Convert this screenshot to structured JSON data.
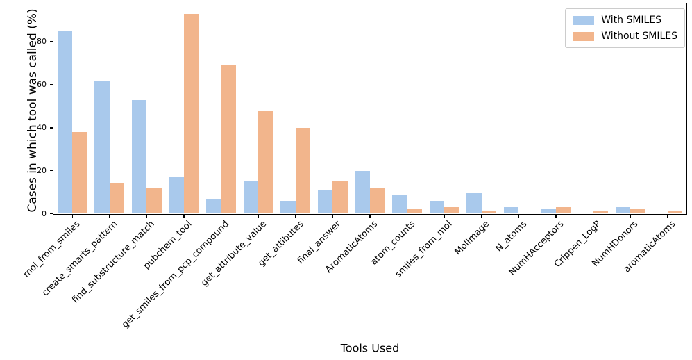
{
  "chart_data": {
    "type": "bar",
    "title": "",
    "xlabel": "Tools Used",
    "ylabel": "Cases in which tool was called (%)",
    "ylim": [
      0,
      97.65
    ],
    "yticks": [
      0,
      20,
      40,
      60,
      80
    ],
    "grid": false,
    "legend_position": "upper-right",
    "background": "#ffffff",
    "axis_color": "#000000",
    "categories": [
      "mol_from_smiles",
      "create_smarts_pattern",
      "find_substructure_match",
      "pubchem_tool",
      "get_smiles_from_pcp_compound",
      "get_attribute_value",
      "get_attibutes",
      "final_answer",
      "AromaticAtoms",
      "atom_counts",
      "smiles_from_mol",
      "MolImage",
      "N_atoms",
      "NumHAcceptors",
      "Crippen_LogP",
      "NumHDonors",
      "aromaticAtoms"
    ],
    "series": [
      {
        "name": "With SMILES",
        "color": "#a9c9ec",
        "values": [
          85,
          62,
          53,
          17,
          7,
          15,
          6,
          11,
          20,
          9,
          6,
          10,
          3,
          2,
          0,
          3,
          0
        ]
      },
      {
        "name": "Without SMILES",
        "color": "#f2b58c",
        "values": [
          38,
          14,
          12,
          93,
          69,
          48,
          40,
          15,
          12,
          2,
          3,
          1,
          0,
          3,
          1,
          2,
          1
        ]
      }
    ]
  }
}
